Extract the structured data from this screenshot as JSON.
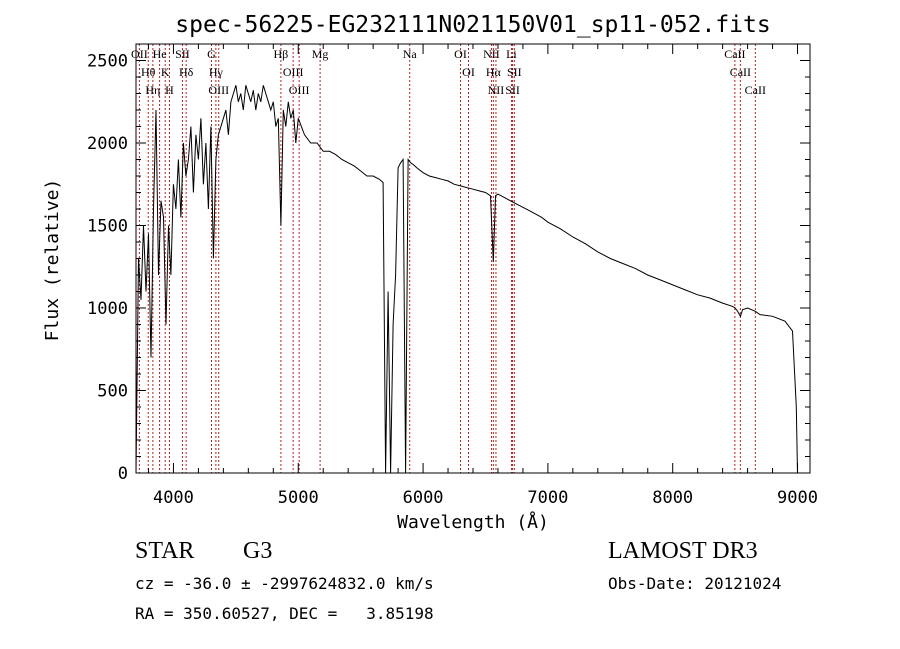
{
  "chart_data": {
    "type": "line",
    "title": "spec-56225-EG232111N021150V01_sp11-052.fits",
    "xlabel": "Wavelength (Å)",
    "ylabel": "Flux (relative)",
    "xlim": [
      3700,
      9100
    ],
    "ylim": [
      0,
      2600
    ],
    "xticks": [
      4000,
      5000,
      6000,
      7000,
      8000,
      9000
    ],
    "yticks": [
      0,
      500,
      1000,
      1500,
      2000,
      2500
    ],
    "grid": false,
    "series": [
      {
        "name": "spectrum",
        "x": [
          3700,
          3720,
          3740,
          3760,
          3780,
          3800,
          3820,
          3840,
          3860,
          3880,
          3900,
          3920,
          3940,
          3960,
          3980,
          4000,
          4020,
          4040,
          4060,
          4080,
          4100,
          4120,
          4140,
          4160,
          4180,
          4200,
          4220,
          4240,
          4260,
          4280,
          4300,
          4320,
          4340,
          4360,
          4380,
          4400,
          4420,
          4440,
          4460,
          4480,
          4500,
          4520,
          4540,
          4560,
          4580,
          4600,
          4620,
          4640,
          4660,
          4680,
          4700,
          4720,
          4740,
          4760,
          4780,
          4800,
          4820,
          4840,
          4861,
          4880,
          4900,
          4920,
          4940,
          4960,
          4980,
          5000,
          5050,
          5100,
          5150,
          5200,
          5250,
          5300,
          5350,
          5400,
          5450,
          5500,
          5550,
          5600,
          5650,
          5680,
          5700,
          5720,
          5740,
          5760,
          5780,
          5800,
          5820,
          5840,
          5860,
          5880,
          5900,
          5920,
          5950,
          6000,
          6050,
          6100,
          6150,
          6200,
          6250,
          6300,
          6350,
          6400,
          6450,
          6500,
          6540,
          6563,
          6580,
          6600,
          6650,
          6700,
          6750,
          6800,
          6850,
          6900,
          6950,
          7000,
          7100,
          7200,
          7300,
          7400,
          7500,
          7600,
          7700,
          7800,
          7900,
          8000,
          8100,
          8200,
          8300,
          8400,
          8480,
          8500,
          8520,
          8542,
          8560,
          8600,
          8662,
          8700,
          8800,
          8900,
          8960,
          8990,
          9000
        ],
        "values": [
          0,
          1300,
          1050,
          1500,
          1100,
          1450,
          700,
          1600,
          2200,
          1200,
          1650,
          1550,
          900,
          1500,
          1200,
          1750,
          1600,
          1900,
          1550,
          2000,
          1800,
          1900,
          2100,
          1700,
          2050,
          1900,
          2150,
          1750,
          2000,
          1600,
          2100,
          1300,
          1900,
          2050,
          2100,
          2150,
          2200,
          2050,
          2250,
          2300,
          2350,
          2250,
          2300,
          2200,
          2350,
          2300,
          2250,
          2320,
          2200,
          2300,
          2250,
          2350,
          2300,
          2250,
          2200,
          2250,
          2100,
          2150,
          1500,
          2200,
          2100,
          2250,
          2150,
          2200,
          2000,
          2150,
          2050,
          2000,
          2000,
          1950,
          1950,
          1930,
          1900,
          1880,
          1860,
          1830,
          1800,
          1800,
          1780,
          1760,
          0,
          1100,
          0,
          900,
          1200,
          1850,
          1880,
          1900,
          0,
          1900,
          1880,
          1870,
          1850,
          1820,
          1800,
          1790,
          1780,
          1770,
          1750,
          1740,
          1730,
          1720,
          1710,
          1700,
          1680,
          1280,
          1680,
          1690,
          1670,
          1650,
          1630,
          1610,
          1590,
          1570,
          1550,
          1520,
          1480,
          1430,
          1390,
          1340,
          1300,
          1270,
          1240,
          1200,
          1170,
          1140,
          1110,
          1080,
          1060,
          1030,
          1010,
          1000,
          980,
          950,
          990,
          1000,
          980,
          960,
          950,
          920,
          860,
          400,
          0
        ]
      }
    ],
    "lines": [
      {
        "label": "OII",
        "x": 3727
      },
      {
        "label": "Hθ",
        "x": 3798
      },
      {
        "label": "Hη",
        "x": 3835
      },
      {
        "label": "K",
        "x": 3934
      },
      {
        "label": "He",
        "x": 3889
      },
      {
        "label": "H",
        "x": 3968
      },
      {
        "label": "Hδ",
        "x": 4102
      },
      {
        "label": "SII",
        "x": 4072
      },
      {
        "label": "OIII",
        "x": 4363
      },
      {
        "label": "Hγ",
        "x": 4340
      },
      {
        "label": "G",
        "x": 4305
      },
      {
        "label": "Hβ",
        "x": 4861
      },
      {
        "label": "OIII",
        "x": 4959
      },
      {
        "label": "OIII",
        "x": 5007
      },
      {
        "label": "Mg",
        "x": 5175
      },
      {
        "label": "Na",
        "x": 5893
      },
      {
        "label": "OI",
        "x": 6300
      },
      {
        "label": "OI",
        "x": 6364
      },
      {
        "label": "Hα",
        "x": 6563
      },
      {
        "label": "NII",
        "x": 6548
      },
      {
        "label": "NII",
        "x": 6584
      },
      {
        "label": "SII",
        "x": 6717
      },
      {
        "label": "Li",
        "x": 6708
      },
      {
        "label": "SII",
        "x": 6731
      },
      {
        "label": "CaII",
        "x": 8498
      },
      {
        "label": "CaII",
        "x": 8542
      },
      {
        "label": "CaII",
        "x": 8662
      }
    ]
  },
  "info": {
    "object_class": "STAR",
    "subclass": "G3",
    "survey": "LAMOST DR3",
    "cz_line": "cz = -36.0 ± -2997624832.0 km/s",
    "obs_date": "Obs-Date: 20121024",
    "coords_line": "RA = 350.60527, DEC =   3.85198"
  },
  "colors": {
    "line_marker": "#b22222",
    "spectrum": "#000000"
  }
}
